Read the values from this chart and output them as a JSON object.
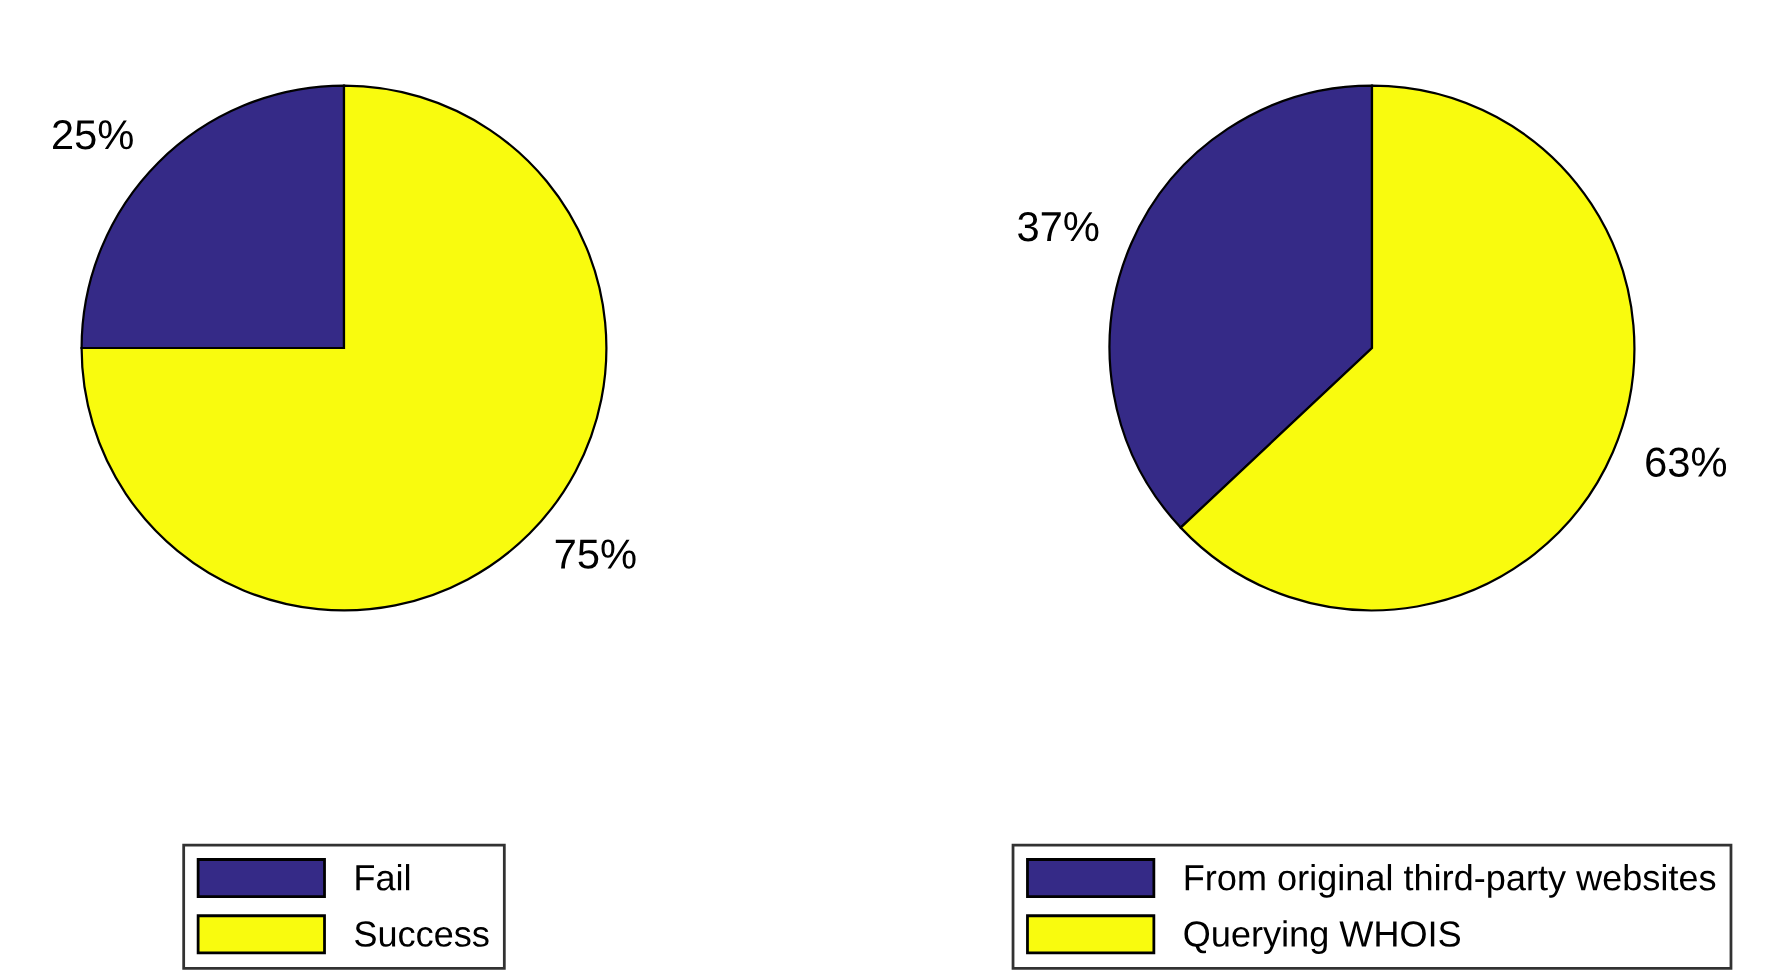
{
  "chart_data": [
    {
      "type": "pie",
      "categories": [
        "Fail",
        "Success"
      ],
      "values": [
        25,
        75
      ],
      "value_labels": [
        "25%",
        "75%"
      ],
      "colors": [
        "#352a87",
        "#f9fb0e"
      ],
      "legend": "bottom"
    },
    {
      "type": "pie",
      "categories": [
        "From original third-party websites",
        "Querying WHOIS"
      ],
      "values": [
        37,
        63
      ],
      "value_labels": [
        "37%",
        "63%"
      ],
      "colors": [
        "#352a87",
        "#f9fb0e"
      ],
      "legend": "bottom"
    }
  ]
}
